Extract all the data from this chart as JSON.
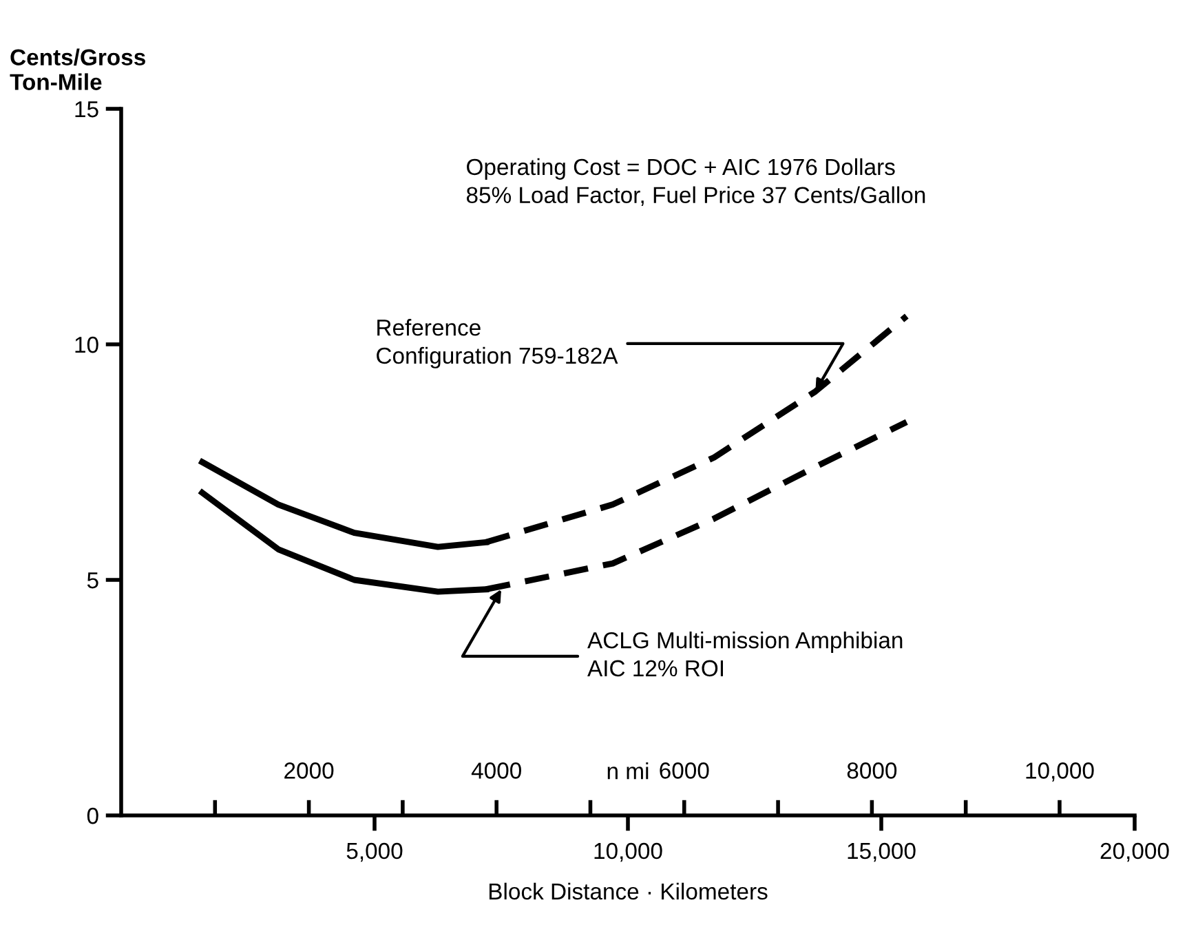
{
  "chart_data": {
    "type": "line",
    "ylabel": "Cents/Gross\nTon-Mile",
    "xlabel": "Block Distance · Kilometers",
    "x2label": "n mi",
    "xlim": [
      0,
      20000
    ],
    "xticks": [
      {
        "value": 5000,
        "label": "5,000"
      },
      {
        "value": 10000,
        "label": "10,000"
      },
      {
        "value": 15000,
        "label": "15,000"
      },
      {
        "value": 20000,
        "label": "20,000"
      }
    ],
    "x2lim": [
      0,
      10800
    ],
    "x2ticks": [
      {
        "value": 1000,
        "label": null
      },
      2000,
      {
        "value": 3000,
        "label": null
      },
      4000,
      {
        "value": 5000,
        "label": null
      },
      6000,
      {
        "value": 7000,
        "label": null
      },
      8000,
      {
        "value": 9000,
        "label": null
      },
      {
        "value": 10000,
        "label": "10,000"
      }
    ],
    "ylim": [
      0,
      15
    ],
    "yticks": [
      0,
      5,
      10,
      15
    ],
    "grid": false,
    "legend": false,
    "marker": "none",
    "series": [
      {
        "color": "#000000",
        "line_style": "solid",
        "x": [
          1600,
          3100,
          4600,
          6250,
          7200
        ],
        "values": [
          7.5,
          6.6,
          6.0,
          5.7,
          5.8
        ]
      },
      {
        "color": "#000000",
        "line_style": "dashed",
        "x": [
          7200,
          9700,
          11700,
          13700,
          15500
        ],
        "values": [
          5.8,
          6.6,
          7.6,
          9.0,
          10.6
        ]
      },
      {
        "color": "#000000",
        "line_style": "solid",
        "x": [
          1600,
          3100,
          4600,
          6250,
          7200
        ],
        "values": [
          6.85,
          5.65,
          5.0,
          4.75,
          4.8
        ]
      },
      {
        "color": "#000000",
        "line_style": "dashed",
        "x": [
          7200,
          9700,
          11700,
          13700,
          15500
        ],
        "values": [
          4.8,
          5.35,
          6.3,
          7.4,
          8.35
        ]
      }
    ],
    "annotations": [
      "Operating Cost = DOC + AIC 1976 Dollars\n85% Load Factor, Fuel Price 37 Cents/Gallon",
      {
        "text": "Reference\nConfiguration 759-182A",
        "x": 13700,
        "y": 9.0
      },
      {
        "text": "ACLG Multi-mission Amphibian\nAIC 12% ROI",
        "x": 7500,
        "y": 4.8
      }
    ]
  }
}
